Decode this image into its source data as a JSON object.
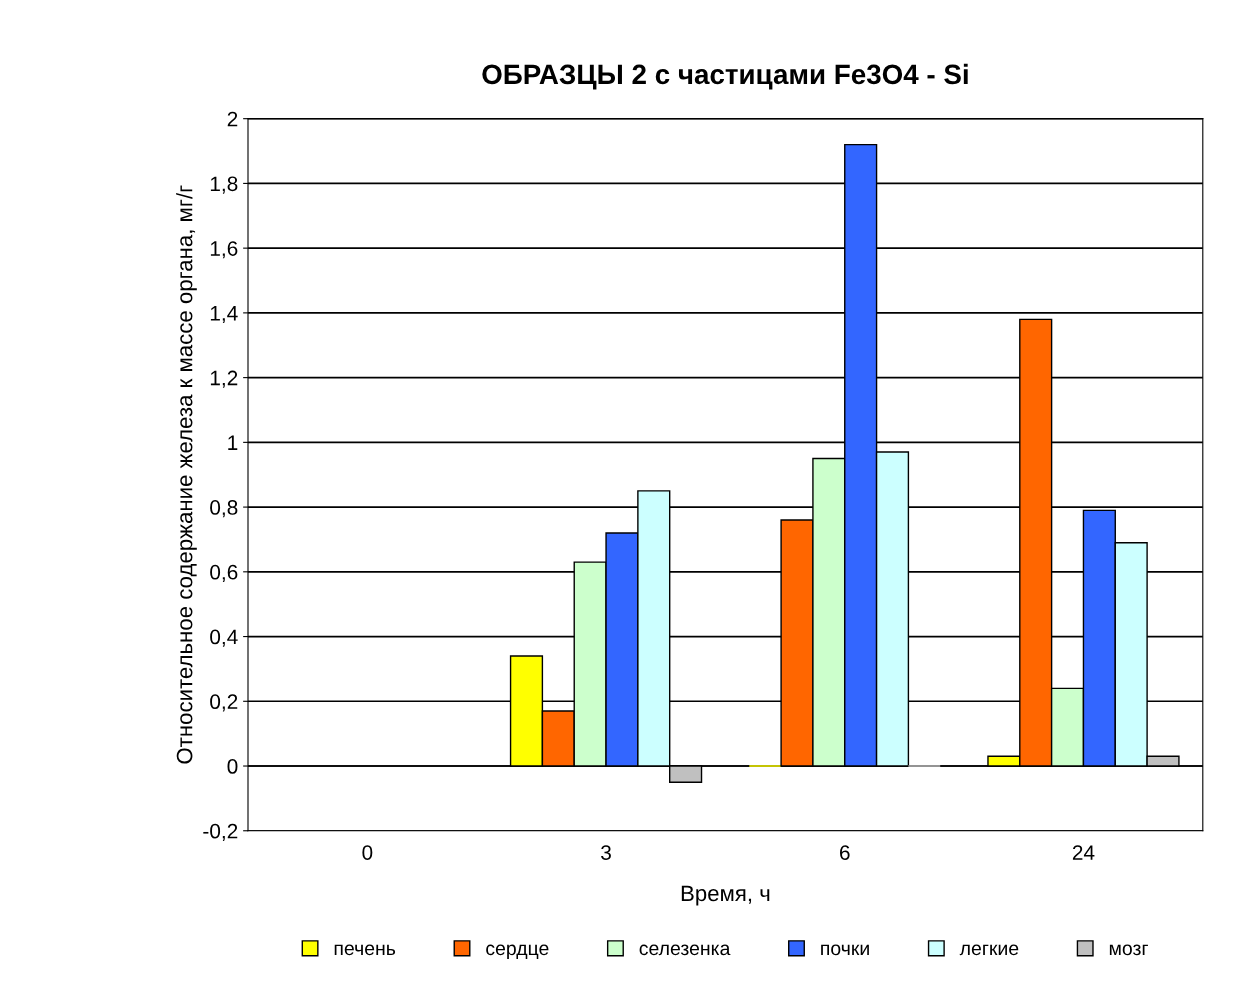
{
  "chart_data": {
    "type": "bar",
    "title": "ОБРАЗЦЫ 2 с частицами Fe3O4 - Si",
    "xlabel": "Время, ч",
    "ylabel": "Относительное содержание железа к массе органа, мг/г",
    "categories": [
      "0",
      "3",
      "6",
      "24"
    ],
    "series": [
      {
        "name": "печень",
        "color": "#ffff00",
        "values": [
          null,
          0.34,
          0,
          0.03
        ]
      },
      {
        "name": "сердце",
        "color": "#ff6600",
        "values": [
          null,
          0.17,
          0.76,
          1.38
        ]
      },
      {
        "name": "селезенка",
        "color": "#ccffcc",
        "values": [
          null,
          0.63,
          0.95,
          0.24
        ]
      },
      {
        "name": "почки",
        "color": "#3366ff",
        "values": [
          null,
          0.72,
          1.92,
          0.79
        ]
      },
      {
        "name": "легкие",
        "color": "#ccffff",
        "values": [
          null,
          0.85,
          0.97,
          0.69
        ]
      },
      {
        "name": "мозг",
        "color": "#c0c0c0",
        "values": [
          null,
          -0.05,
          0,
          0.03
        ]
      }
    ],
    "ylim": [
      -0.2,
      2
    ],
    "yticks": [
      {
        "value": -0.2,
        "label": "-0,2"
      },
      0,
      {
        "value": 0.2,
        "label": "0,2"
      },
      {
        "value": 0.4,
        "label": "0,4"
      },
      {
        "value": 0.6,
        "label": "0,6"
      },
      {
        "value": 0.8,
        "label": "0,8"
      },
      1,
      {
        "value": 1.2,
        "label": "1,2"
      },
      {
        "value": 1.4,
        "label": "1,4"
      },
      {
        "value": 1.6,
        "label": "1,6"
      },
      {
        "value": 1.8,
        "label": "1,8"
      },
      2
    ],
    "grid": "y",
    "legend": "bottom"
  }
}
